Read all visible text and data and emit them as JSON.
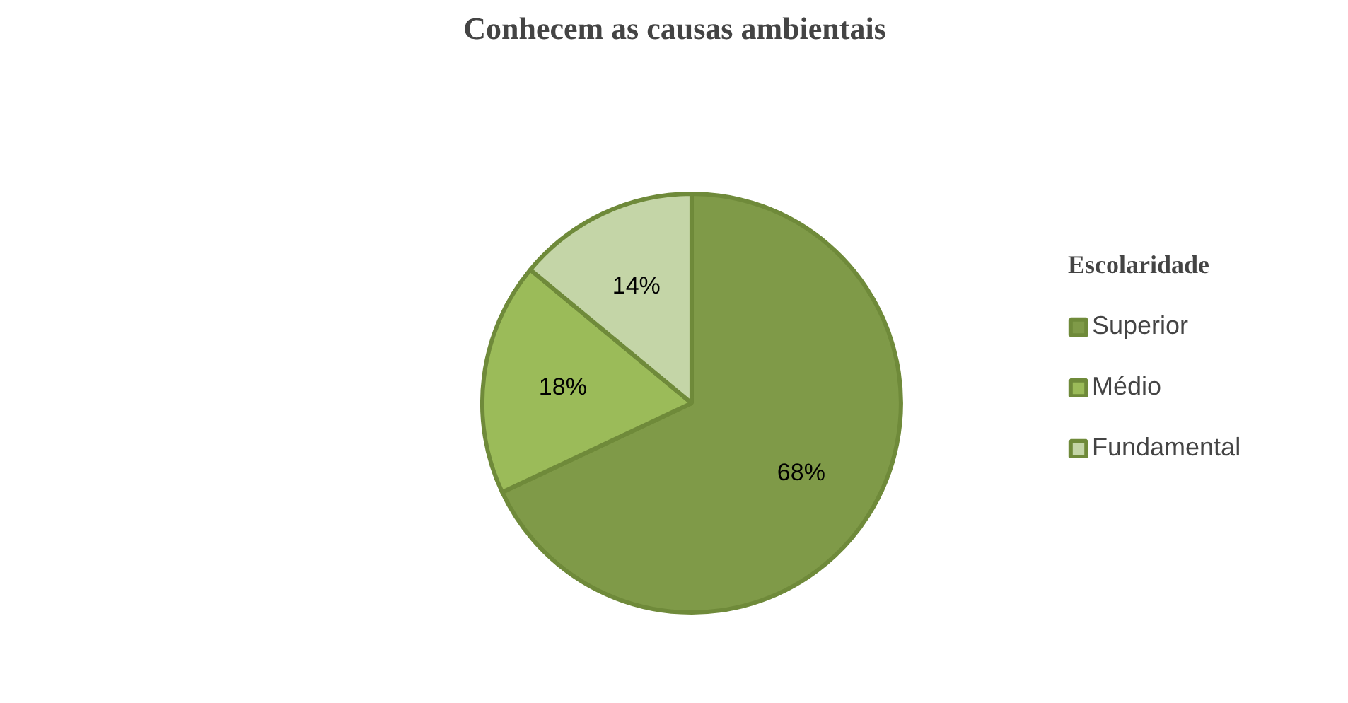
{
  "chart_data": {
    "type": "pie",
    "title": "Conhecem as causas ambientais",
    "legend_title": "Escolaridade",
    "categories": [
      "Superior",
      "Médio",
      "Fundamental"
    ],
    "values": [
      68,
      18,
      14
    ],
    "value_labels": [
      "68%",
      "18%",
      "14%"
    ],
    "colors": [
      "#7f9a48",
      "#9bbb59",
      "#c4d5a7"
    ],
    "legend": "right"
  }
}
